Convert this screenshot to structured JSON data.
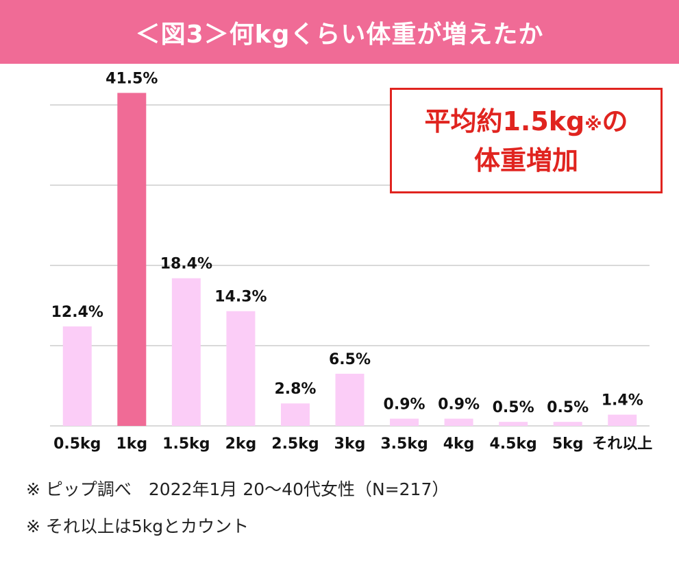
{
  "header": {
    "title": "＜図3＞何kgくらい体重が増えたか"
  },
  "callout": {
    "line1_main": "平均約1.5kg",
    "line1_mark": "※",
    "line1_tail": "の",
    "line2": "体重増加"
  },
  "footnotes": [
    "※ ピップ調べ　2022年1月 20〜40代女性（N=217）",
    "※ それ以上は5kgとカウント"
  ],
  "colors": {
    "header": "#f06b96",
    "highlight_bar": "#f06b96",
    "bar": "#fbcdf7",
    "callout": "#e0241f",
    "grid": "#d9d9d9"
  },
  "chart_data": {
    "type": "bar",
    "categories": [
      "0.5kg",
      "1kg",
      "1.5kg",
      "2kg",
      "2.5kg",
      "3kg",
      "3.5kg",
      "4kg",
      "4.5kg",
      "5kg",
      "それ以上"
    ],
    "values": [
      12.4,
      41.5,
      18.4,
      14.3,
      2.8,
      6.5,
      0.9,
      0.9,
      0.5,
      0.5,
      1.4
    ],
    "data_labels": [
      "12.4%",
      "41.5%",
      "18.4%",
      "14.3%",
      "2.8%",
      "6.5%",
      "0.9%",
      "0.9%",
      "0.5%",
      "0.5%",
      "1.4%"
    ],
    "highlight_index": 1,
    "ylim": [
      0,
      40
    ],
    "grid": true,
    "title": "",
    "xlabel": "",
    "ylabel": ""
  }
}
